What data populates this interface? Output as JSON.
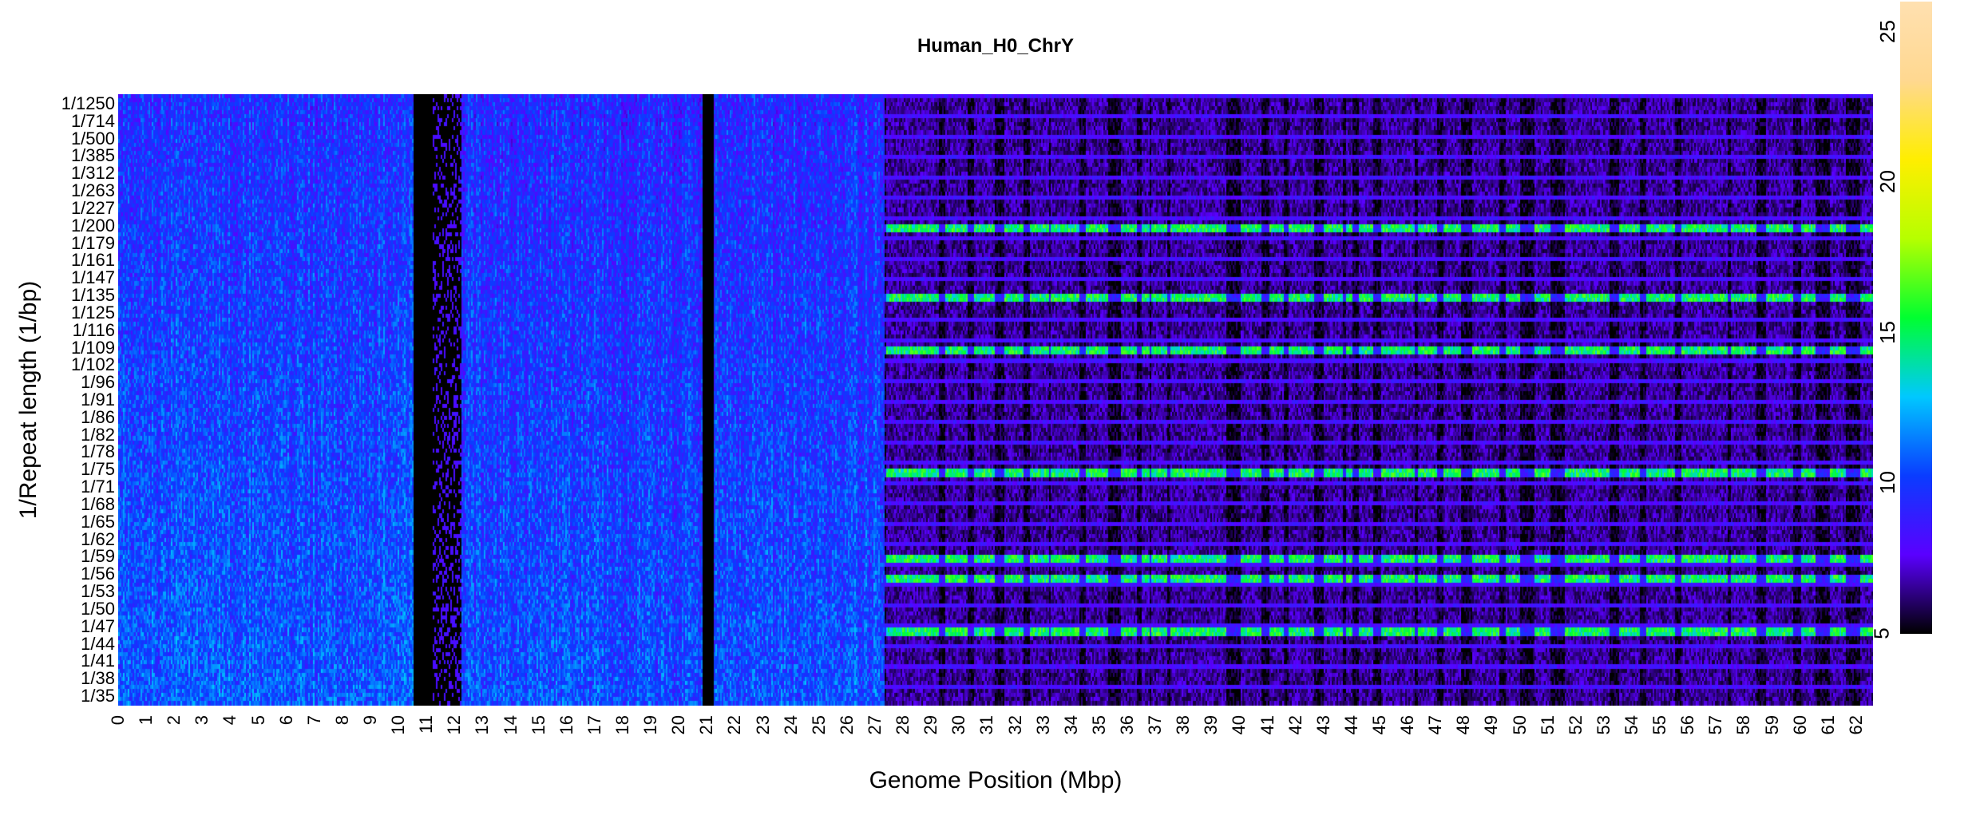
{
  "chart_data": {
    "type": "heatmap",
    "title": "Human_H0_ChrY",
    "xlabel": "Genome Position (Mbp)",
    "ylabel": "1/Repeat length (1/bp)",
    "x_ticks": [
      "0",
      "1",
      "2",
      "3",
      "4",
      "5",
      "6",
      "7",
      "8",
      "9",
      "10",
      "11",
      "12",
      "13",
      "14",
      "15",
      "16",
      "17",
      "18",
      "19",
      "20",
      "21",
      "22",
      "23",
      "24",
      "25",
      "26",
      "27",
      "28",
      "29",
      "30",
      "31",
      "32",
      "33",
      "34",
      "35",
      "36",
      "37",
      "38",
      "39",
      "40",
      "41",
      "42",
      "43",
      "44",
      "45",
      "46",
      "47",
      "48",
      "49",
      "50",
      "51",
      "52",
      "53",
      "54",
      "55",
      "56",
      "57",
      "58",
      "59",
      "60",
      "61",
      "62"
    ],
    "y_ticks": [
      "1/1250",
      "1/714",
      "1/500",
      "1/385",
      "1/312",
      "1/263",
      "1/227",
      "1/200",
      "1/179",
      "1/161",
      "1/147",
      "1/135",
      "1/125",
      "1/116",
      "1/109",
      "1/102",
      "1/96",
      "1/91",
      "1/86",
      "1/82",
      "1/78",
      "1/75",
      "1/71",
      "1/68",
      "1/65",
      "1/62",
      "1/59",
      "1/56",
      "1/53",
      "1/50",
      "1/47",
      "1/44",
      "1/41",
      "1/38",
      "1/35"
    ],
    "xlim": [
      0,
      62.6
    ],
    "colorbar": {
      "min": 5,
      "max": 26,
      "ticks": [
        "5",
        "10",
        "15",
        "20",
        "25"
      ],
      "colors": [
        "#000000",
        "#5a00ff",
        "#0a3cff",
        "#00c8ff",
        "#00ff30",
        "#b6ff00",
        "#ffee00",
        "#ffd890",
        "#ffe0b0"
      ]
    },
    "regions": [
      {
        "from": 0,
        "to": 10.5,
        "pattern": "dense",
        "level": 9.5
      },
      {
        "from": 10.5,
        "to": 11.2,
        "pattern": "gap"
      },
      {
        "from": 11.2,
        "to": 12.2,
        "pattern": "sparse",
        "level": 6.5
      },
      {
        "from": 12.2,
        "to": 20.8,
        "pattern": "dense",
        "level": 9.2
      },
      {
        "from": 20.8,
        "to": 21.2,
        "pattern": "gap"
      },
      {
        "from": 21.2,
        "to": 27.3,
        "pattern": "dense",
        "level": 9.3
      },
      {
        "from": 27.3,
        "to": 62.6,
        "pattern": "striped",
        "level": 8.0
      }
    ],
    "highlight_rows": [
      "1/200",
      "1/75",
      "1/59",
      "1/56",
      "1/47",
      "1/109",
      "1/135"
    ]
  }
}
